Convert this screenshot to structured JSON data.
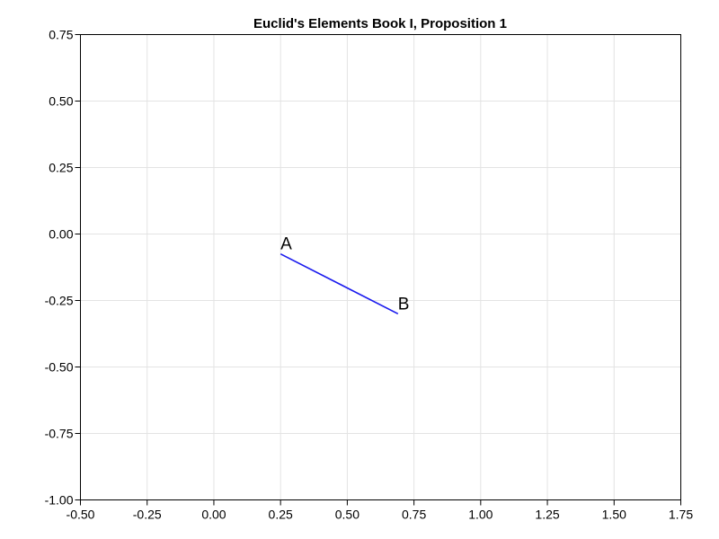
{
  "chart_data": {
    "type": "line",
    "title": "Euclid's Elements Book I, Proposition 1",
    "xlabel": "",
    "ylabel": "",
    "xlim": [
      -0.5,
      1.75
    ],
    "ylim": [
      -1.0,
      0.75
    ],
    "grid": true,
    "x_ticks": [
      "-0.50",
      "-0.25",
      "0.00",
      "0.25",
      "0.50",
      "0.75",
      "1.00",
      "1.25",
      "1.50",
      "1.75"
    ],
    "y_ticks": [
      "0.75",
      "0.50",
      "0.25",
      "0.00",
      "-0.25",
      "-0.50",
      "-0.75",
      "-1.00"
    ],
    "series": [
      {
        "color": "#1a1aee",
        "points": [
          {
            "label": "A",
            "x": 0.25,
            "y": -0.075
          },
          {
            "label": "B",
            "x": 0.69,
            "y": -0.3
          }
        ]
      }
    ]
  }
}
